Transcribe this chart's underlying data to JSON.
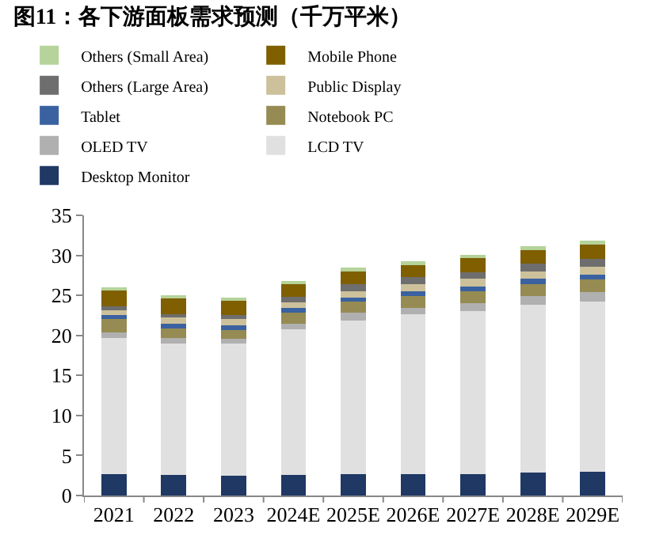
{
  "chart_data": {
    "type": "bar",
    "title": "图11：各下游面板需求预测（千万平米）",
    "stacked": true,
    "legend": "top",
    "grid": false,
    "categories": [
      "2021",
      "2022",
      "2023",
      "2024E",
      "2025E",
      "2026E",
      "2027E",
      "2028E",
      "2029E"
    ],
    "ylim": [
      0,
      35
    ],
    "yticks": [
      0,
      5,
      10,
      15,
      20,
      25,
      30,
      35
    ],
    "series": [
      {
        "name": "Desktop Monitor",
        "color": "#1f3864",
        "values": [
          2.7,
          2.6,
          2.5,
          2.6,
          2.7,
          2.7,
          2.7,
          2.9,
          3.0
        ]
      },
      {
        "name": "LCD TV",
        "color": "#e0e0e0",
        "values": [
          17.0,
          16.4,
          16.5,
          18.2,
          19.2,
          19.9,
          20.3,
          20.9,
          21.2
        ]
      },
      {
        "name": "OLED TV",
        "color": "#b0b0b0",
        "values": [
          0.7,
          0.7,
          0.6,
          0.7,
          0.9,
          0.8,
          1.0,
          1.1,
          1.2
        ]
      },
      {
        "name": "Notebook PC",
        "color": "#968b52",
        "values": [
          1.6,
          1.2,
          1.1,
          1.3,
          1.4,
          1.5,
          1.5,
          1.5,
          1.6
        ]
      },
      {
        "name": "Tablet",
        "color": "#3a62a0",
        "values": [
          0.5,
          0.6,
          0.6,
          0.6,
          0.5,
          0.6,
          0.6,
          0.7,
          0.6
        ]
      },
      {
        "name": "Public Display",
        "color": "#cdc19b",
        "values": [
          0.6,
          0.7,
          0.7,
          0.7,
          0.8,
          0.9,
          1.0,
          0.9,
          1.0
        ]
      },
      {
        "name": "Others (Large Area)",
        "color": "#6e6e6e",
        "values": [
          0.5,
          0.4,
          0.5,
          0.7,
          0.9,
          0.9,
          0.8,
          1.0,
          1.0
        ]
      },
      {
        "name": "Mobile Phone",
        "color": "#7f5f00",
        "values": [
          2.0,
          2.0,
          1.8,
          1.6,
          1.6,
          1.5,
          1.8,
          1.7,
          1.7
        ]
      },
      {
        "name": "Others (Small Area)",
        "color": "#b5d39a",
        "values": [
          0.4,
          0.4,
          0.4,
          0.4,
          0.5,
          0.5,
          0.4,
          0.4,
          0.5
        ]
      }
    ]
  }
}
